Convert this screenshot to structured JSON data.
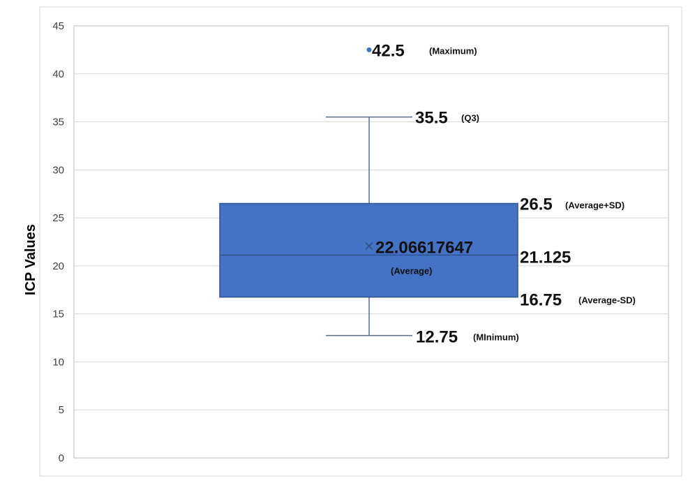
{
  "chart_data": {
    "type": "box",
    "title": "",
    "xlabel": "",
    "ylabel": "ICP Values",
    "ylim": [
      0,
      45
    ],
    "yticks": [
      0,
      5,
      10,
      15,
      20,
      25,
      30,
      35,
      40,
      45
    ],
    "grid": true,
    "box": {
      "whisker_low": 12.75,
      "q1": 16.75,
      "median": 21.125,
      "q3": 26.5,
      "whisker_high": 35.5,
      "mean": 22.06617647,
      "outliers": [
        42.5
      ]
    },
    "annotations": {
      "max_value": "42.5",
      "max_note": "(Maximum)",
      "whisker_high_value": "35.5",
      "whisker_high_note": "(Q3)",
      "q3_value": "26.5",
      "q3_note": "(Average+SD)",
      "mean_value": "22.06617647",
      "mean_note": "(Average)",
      "median_value": "21.125",
      "q1_value": "16.75",
      "q1_note": "(Average-SD)",
      "min_value": "12.75",
      "min_note": "(MInimum)"
    },
    "colors": {
      "box_fill": "#4472c4",
      "box_stroke": "#2f528f",
      "whisker": "#5a6e8c",
      "grid": "#d9d9d9",
      "outlier": "#4472c4"
    }
  }
}
